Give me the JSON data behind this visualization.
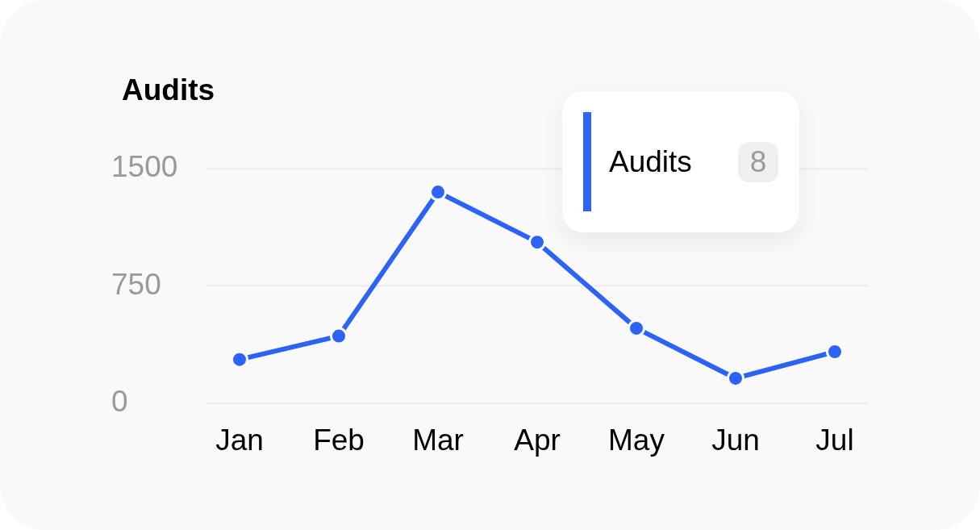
{
  "chart_data": {
    "type": "line",
    "title": "Audits",
    "categories": [
      "Jan",
      "Feb",
      "Mar",
      "Apr",
      "May",
      "Jun",
      "Jul"
    ],
    "series": [
      {
        "name": "Audits",
        "color": "#2d63f5",
        "values": [
          280,
          430,
          1350,
          1030,
          480,
          160,
          330
        ]
      }
    ],
    "ylim": [
      0,
      1500
    ],
    "yticks": [
      0,
      750,
      1500
    ],
    "grid": "y",
    "legend": "top right",
    "marker": "circle",
    "line_style": "solid",
    "annotations": [
      "8"
    ]
  }
}
